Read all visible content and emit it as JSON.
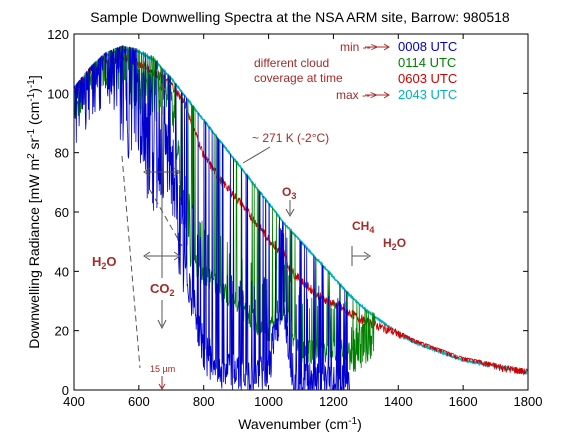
{
  "chart_data": {
    "type": "line",
    "title": "Sample  Downwelling Spectra at the NSA ARM site, Barrow: 980518",
    "xlabel": "Wavenumber (cm",
    "xlabel_sup": "-1",
    "xlabel_tail": ")",
    "ylabel": "Downwelling Radiance [mW m",
    "ylabel_sup1": "2",
    "ylabel_mid1": " sr",
    "ylabel_sup2": "-1",
    "ylabel_mid2": " (cm",
    "ylabel_sup3": "-1",
    "ylabel_tail": ")",
    "ylabel_sup4": "-1",
    "ylabel_end": "]",
    "xlim": [
      400,
      1800
    ],
    "ylim": [
      0,
      120
    ],
    "xticks": [
      400,
      600,
      800,
      1000,
      1200,
      1400,
      1600,
      1800
    ],
    "yticks": [
      0,
      20,
      40,
      60,
      80,
      100,
      120
    ],
    "grid": false,
    "legend": {
      "placement": "top-right",
      "min_label": "min -->",
      "max_label": "max -->",
      "note": [
        "different cloud",
        "coverage at time"
      ],
      "note_color": "#a52a2a"
    },
    "series": [
      {
        "name": "0008 UTC",
        "color": "#0000cc",
        "x": [
          400,
          450,
          500,
          550,
          600,
          650,
          700,
          720,
          740,
          760,
          780,
          800,
          850,
          900,
          950,
          1000,
          1020,
          1050,
          1080,
          1100,
          1150,
          1200,
          1250
        ],
        "y": [
          100,
          108,
          112,
          110,
          100,
          86,
          78,
          60,
          42,
          35,
          25,
          15,
          8,
          7,
          6,
          8,
          22,
          28,
          4,
          5,
          4,
          3,
          3
        ]
      },
      {
        "name": "0114 UTC",
        "color": "#008000",
        "x": [
          400,
          450,
          500,
          550,
          600,
          650,
          700,
          720,
          740,
          760,
          780,
          800,
          850,
          900,
          950,
          1000,
          1020,
          1050,
          1080,
          1100,
          1150,
          1200,
          1250,
          1300,
          1330
        ],
        "y": [
          100,
          108,
          112,
          111,
          108,
          104,
          98,
          82,
          60,
          45,
          42,
          40,
          35,
          30,
          25,
          20,
          27,
          29,
          17,
          14,
          14,
          14,
          14,
          18,
          22
        ]
      },
      {
        "name": "0603 UTC",
        "color": "#cc0000",
        "x": [
          400,
          450,
          500,
          550,
          600,
          650,
          700,
          740,
          800,
          850,
          900,
          950,
          1000,
          1030,
          1050,
          1060,
          1080,
          1100,
          1150,
          1200,
          1250,
          1300,
          1350,
          1400,
          1450,
          1500,
          1550,
          1600,
          1650,
          1700,
          1750,
          1800
        ],
        "y": [
          100,
          108,
          111,
          112,
          110,
          107,
          103,
          97,
          79,
          71,
          65,
          58,
          51,
          47,
          46,
          42,
          39,
          37,
          32,
          29,
          26,
          23,
          21,
          19,
          17,
          15,
          13,
          11,
          10,
          8,
          7,
          6
        ]
      },
      {
        "name": "2043 UTC",
        "color": "#00b0c0",
        "x": [
          400,
          450,
          500,
          550,
          600,
          650,
          700,
          750,
          800,
          850,
          900,
          950,
          1000,
          1050,
          1100,
          1150,
          1200,
          1250,
          1300,
          1350,
          1400,
          1450,
          1500,
          1550,
          1600,
          1650,
          1700,
          1750,
          1800
        ],
        "y": [
          101,
          108,
          113,
          115,
          114,
          111,
          105,
          98,
          91,
          84,
          77,
          70,
          63,
          56,
          50,
          44,
          38,
          32,
          27,
          23,
          19,
          16,
          14,
          12,
          10,
          9,
          8,
          7,
          6
        ]
      }
    ],
    "annotations": [
      {
        "text": "~ 271 K (-2°C)",
        "color": "#a52a2a"
      },
      {
        "text": "O",
        "sub": "3",
        "color": "#a52a2a"
      },
      {
        "text": "CH",
        "sub": "4",
        "color": "#a52a2a"
      },
      {
        "text": "H",
        "sub": "2",
        "tail": "O",
        "color": "#a52a2a"
      },
      {
        "text": "H",
        "sub": "2",
        "tail": "O",
        "color": "#a52a2a"
      },
      {
        "text": "CO",
        "sub": "2",
        "color": "#a52a2a"
      },
      {
        "text": "15 µm",
        "color": "#a52a2a"
      }
    ]
  }
}
